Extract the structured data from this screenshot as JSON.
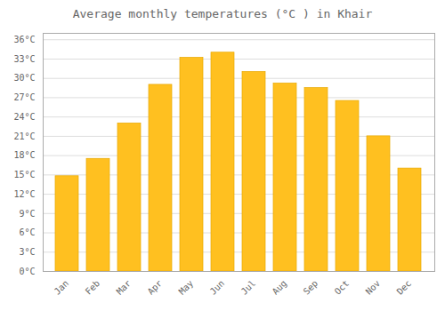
{
  "chart_data": {
    "type": "bar",
    "title": "Average monthly temperatures (°C ) in Khair",
    "categories": [
      "Jan",
      "Feb",
      "Mar",
      "Apr",
      "May",
      "Jun",
      "Jul",
      "Aug",
      "Sep",
      "Oct",
      "Nov",
      "Dec"
    ],
    "values": [
      14.8,
      17.5,
      23.0,
      29.0,
      33.2,
      34.0,
      31.0,
      29.2,
      28.5,
      26.5,
      21.0,
      16.0
    ],
    "color": "#FFC020",
    "ylim": [
      0,
      37
    ],
    "yticks": [
      {
        "value": 0,
        "label": "0°C"
      },
      {
        "value": 3,
        "label": "3°C"
      },
      {
        "value": 6,
        "label": "6°C"
      },
      {
        "value": 9,
        "label": "9°C"
      },
      {
        "value": 12,
        "label": "12°C"
      },
      {
        "value": 15,
        "label": "15°C"
      },
      {
        "value": 18,
        "label": "18°C"
      },
      {
        "value": 21,
        "label": "21°C"
      },
      {
        "value": 24,
        "label": "24°C"
      },
      {
        "value": 27,
        "label": "27°C"
      },
      {
        "value": 30,
        "label": "30°C"
      },
      {
        "value": 33,
        "label": "33°C"
      },
      {
        "value": 36,
        "label": "36°C"
      }
    ],
    "grid": true
  }
}
